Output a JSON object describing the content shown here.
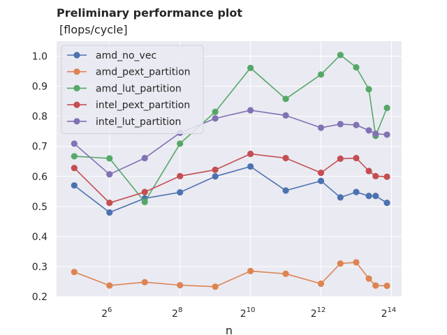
{
  "chart_data": {
    "type": "line",
    "title": "Preliminary performance plot",
    "subtitle": "[flops/cycle]",
    "xlabel": "n",
    "ylabel": "",
    "x_scale": "log2",
    "xlim": [
      22.6,
      20000
    ],
    "ylim": [
      0.2,
      1.05
    ],
    "x_ticks": [
      {
        "value": 64,
        "base": "2",
        "exp": "6"
      },
      {
        "value": 256,
        "base": "2",
        "exp": "8"
      },
      {
        "value": 1024,
        "base": "2",
        "exp": "10"
      },
      {
        "value": 4096,
        "base": "2",
        "exp": "12"
      },
      {
        "value": 16384,
        "base": "2",
        "exp": "14"
      }
    ],
    "y_ticks": [
      "0.2",
      "0.3",
      "0.4",
      "0.5",
      "0.6",
      "0.7",
      "0.8",
      "0.9",
      "1.0"
    ],
    "grid": true,
    "legend_position": "top-left",
    "x": [
      32,
      64,
      128,
      256,
      512,
      1024,
      2048,
      4096,
      6000,
      8192,
      10500,
      12000,
      15000
    ],
    "series": [
      {
        "name": "amd_no_vec",
        "color": "#4c72b0",
        "x": [
          32,
          64,
          128,
          256,
          512,
          1024,
          2048,
          4096,
          6000,
          8192,
          10500,
          12000,
          15000
        ],
        "values": [
          0.57,
          0.48,
          0.527,
          0.547,
          0.6,
          0.633,
          0.553,
          0.585,
          0.53,
          0.548,
          0.535,
          0.535,
          0.512
        ]
      },
      {
        "name": "amd_pext_partition",
        "color": "#dd8452",
        "x": [
          32,
          64,
          128,
          256,
          512,
          1024,
          2048,
          4096,
          6000,
          8192,
          10500,
          12000,
          15000
        ],
        "values": [
          0.282,
          0.237,
          0.248,
          0.238,
          0.233,
          0.285,
          0.276,
          0.243,
          0.31,
          0.314,
          0.26,
          0.237,
          0.236
        ]
      },
      {
        "name": "amd_lut_partition",
        "color": "#55a868",
        "x": [
          32,
          64,
          128,
          256,
          512,
          1024,
          2048,
          4096,
          6000,
          8192,
          10500,
          12000,
          15000
        ],
        "values": [
          0.667,
          0.66,
          0.515,
          0.709,
          0.815,
          0.961,
          0.858,
          0.939,
          1.004,
          0.963,
          0.89,
          0.735,
          0.828
        ]
      },
      {
        "name": "intel_pext_partition",
        "color": "#c44e52",
        "x": [
          32,
          64,
          128,
          256,
          512,
          1024,
          2048,
          4096,
          6000,
          8192,
          10500,
          12000,
          15000
        ],
        "values": [
          0.628,
          0.512,
          0.548,
          0.601,
          0.622,
          0.675,
          0.661,
          0.612,
          0.659,
          0.661,
          0.618,
          0.601,
          0.599
        ]
      },
      {
        "name": "intel_lut_partition",
        "color": "#8172b3",
        "x": [
          32,
          64,
          128,
          256,
          512,
          1024,
          2048,
          4096,
          6000,
          8192,
          10500,
          12000,
          15000
        ],
        "values": [
          0.709,
          0.607,
          0.661,
          0.745,
          0.793,
          0.82,
          0.803,
          0.762,
          0.774,
          0.771,
          0.753,
          0.742,
          0.739
        ]
      }
    ]
  }
}
